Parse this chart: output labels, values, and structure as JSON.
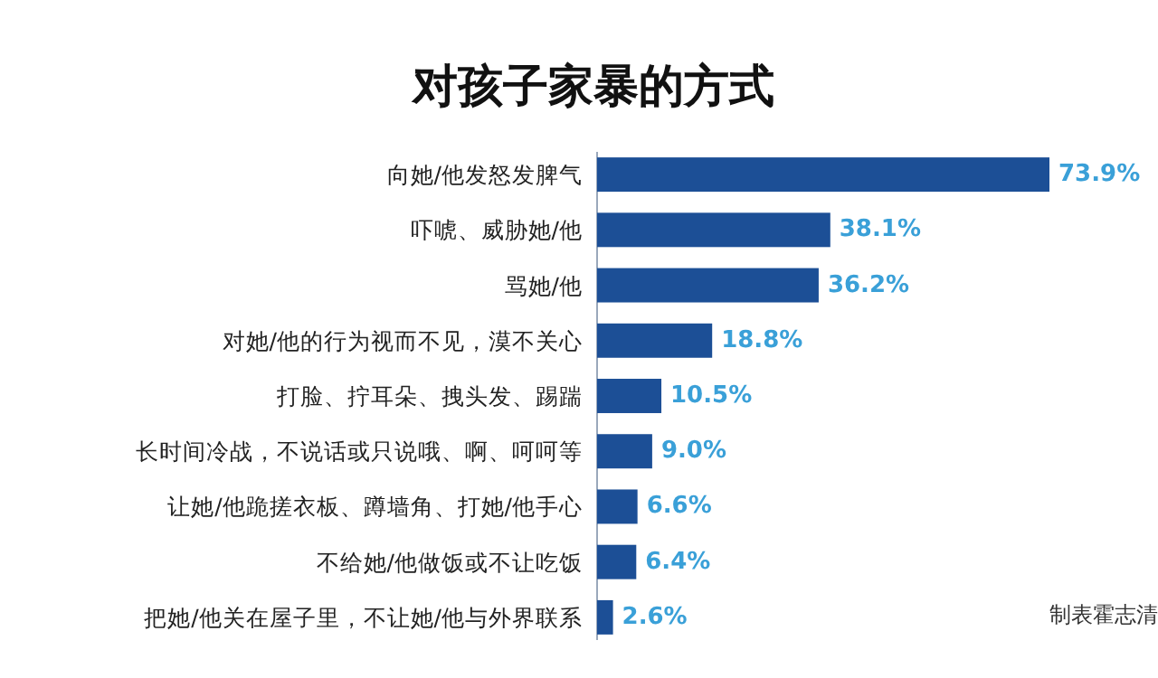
{
  "chart_data": {
    "type": "bar",
    "orientation": "horizontal",
    "title": "对孩子家暴的方式",
    "categories": [
      "向她/他发怒发脾气",
      "吓唬、威胁她/他",
      "骂她/他",
      "对她/他的行为视而不见，漠不关心",
      "打脸、拧耳朵、拽头发、踢踹",
      "长时间冷战，不说话或只说哦、啊、呵呵等",
      "让她/他跪搓衣板、蹲墙角、打她/他手心",
      "不给她/他做饭或不让吃饭",
      "把她/他关在屋子里，不让她/他与外界联系"
    ],
    "values": [
      73.9,
      38.1,
      36.2,
      18.8,
      10.5,
      9.0,
      6.6,
      6.4,
      2.6
    ],
    "value_labels": [
      "73.9%",
      "38.1%",
      "36.2%",
      "18.8%",
      "10.5%",
      "9.0%",
      "6.6%",
      "6.4%",
      "2.6%"
    ],
    "color": "#1c4f96",
    "annotations": [
      "制表霍志清"
    ]
  }
}
